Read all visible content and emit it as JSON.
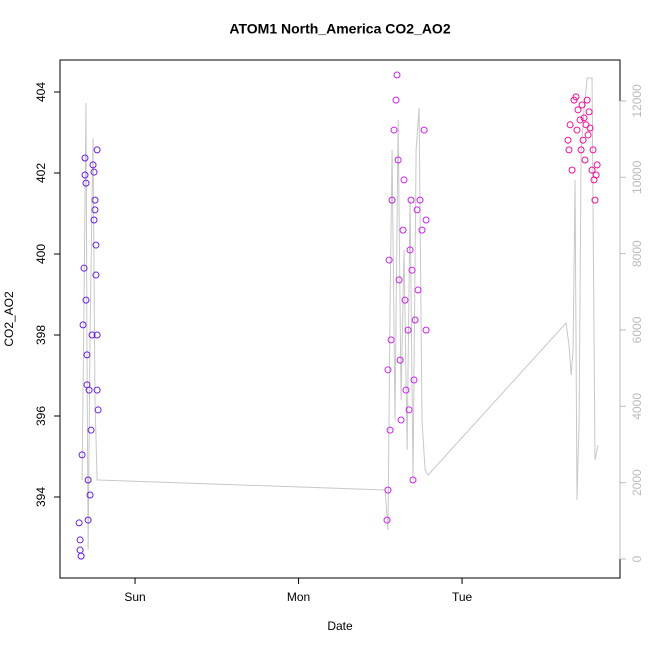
{
  "chart_data": {
    "type": "scatter",
    "title": "ATOM1 North_America CO2_AO2",
    "x_label": "Date",
    "y_label": "CO2_AO2",
    "xlim": [
      0.541,
      3.966
    ],
    "xticks": [
      {
        "value": 1,
        "label": "Sun"
      },
      {
        "value": 2,
        "label": "Mon"
      },
      {
        "value": 3,
        "label": "Tue"
      }
    ],
    "ylim": [
      392.0,
      404.79
    ],
    "yticks": [
      394,
      396,
      398,
      400,
      402,
      404
    ],
    "y2lim": [
      -498,
      13073
    ],
    "y2ticks": [
      0,
      2000,
      4000,
      6000,
      8000,
      10000,
      12000
    ],
    "series": [
      {
        "color": "#6a1fe0",
        "x": [
          0.658,
          0.664,
          0.67,
          0.664,
          0.676,
          0.682,
          0.688,
          0.694,
          0.694,
          0.7,
          0.7,
          0.706,
          0.706,
          0.713,
          0.713,
          0.719,
          0.725,
          0.731,
          0.737,
          0.743,
          0.749,
          0.749,
          0.755,
          0.755,
          0.761,
          0.761,
          0.768,
          0.768,
          0.774,
          0.768
        ],
        "values": [
          393.36,
          392.94,
          392.54,
          392.69,
          395.04,
          398.25,
          399.65,
          401.95,
          402.37,
          401.75,
          398.86,
          396.77,
          397.51,
          394.42,
          393.43,
          396.64,
          394.05,
          395.65,
          398.0,
          402.2,
          402.02,
          400.84,
          401.09,
          401.33,
          400.22,
          399.48,
          398.0,
          396.64,
          396.15,
          402.57
        ]
      },
      {
        "color": "#cc22ee",
        "x": [
          2.541,
          2.547,
          2.547,
          2.554,
          2.56,
          2.566,
          2.572,
          2.584,
          2.596,
          2.602,
          2.609,
          2.615,
          2.621,
          2.627,
          2.639,
          2.645,
          2.651,
          2.657,
          2.67,
          2.676,
          2.682,
          2.688,
          2.694,
          2.7,
          2.706,
          2.713,
          2.725,
          2.731,
          2.743,
          2.755,
          2.768,
          2.78,
          2.78
        ],
        "values": [
          393.43,
          394.17,
          397.14,
          399.85,
          395.65,
          397.88,
          401.33,
          403.06,
          403.8,
          404.42,
          402.32,
          399.36,
          397.38,
          395.9,
          400.59,
          401.83,
          398.86,
          396.64,
          398.12,
          396.15,
          400.1,
          401.33,
          399.6,
          394.42,
          396.89,
          398.37,
          401.09,
          399.11,
          401.33,
          400.59,
          403.06,
          398.12,
          400.84
        ]
      },
      {
        "color": "#ee1199",
        "x": [
          3.648,
          3.654,
          3.661,
          3.673,
          3.685,
          3.697,
          3.703,
          3.709,
          3.722,
          3.728,
          3.734,
          3.74,
          3.746,
          3.752,
          3.758,
          3.765,
          3.771,
          3.777,
          3.783,
          3.795,
          3.801,
          3.807,
          3.813,
          3.82,
          3.826
        ],
        "values": [
          402.81,
          402.57,
          403.19,
          402.07,
          403.8,
          403.88,
          403.06,
          403.56,
          403.31,
          402.57,
          403.68,
          402.81,
          403.36,
          402.32,
          403.19,
          403.8,
          402.94,
          403.51,
          403.11,
          402.07,
          402.57,
          401.83,
          401.33,
          401.95,
          402.2
        ]
      },
      {
        "type": "line",
        "axis": "y2",
        "color": "#c8c8c8",
        "x": [
          0.676,
          0.688,
          0.7,
          0.706,
          0.713,
          0.725,
          0.737,
          0.743,
          0.755,
          0.768,
          0.774,
          2.529,
          2.547,
          2.56,
          2.572,
          2.59,
          2.609,
          2.627,
          2.645,
          2.664,
          2.682,
          2.7,
          2.719,
          2.737,
          2.755,
          2.774,
          2.792,
          3.636,
          3.654,
          3.667,
          3.679,
          3.691,
          3.703,
          3.716,
          3.728,
          3.746,
          3.765,
          3.795,
          3.813,
          3.832
        ],
        "values": [
          2070,
          6785,
          11946,
          5475,
          236,
          6000,
          9405,
          11030,
          4166,
          2070,
          2070,
          1808,
          760,
          6785,
          10715,
          3642,
          11501,
          4166,
          8095,
          2856,
          9405,
          2070,
          10715,
          11815,
          3642,
          2332,
          2200,
          6183,
          5606,
          4820,
          5475,
          9929,
          1546,
          3642,
          10715,
          11763,
          12601,
          12601,
          2594,
          2987
        ]
      }
    ]
  }
}
